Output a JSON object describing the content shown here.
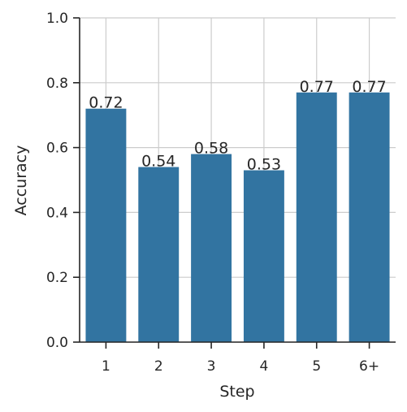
{
  "chart_data": {
    "type": "bar",
    "x_label": "Step",
    "y_label": "Accuracy",
    "categories": [
      "1",
      "2",
      "3",
      "4",
      "5",
      "6+"
    ],
    "values": [
      0.72,
      0.54,
      0.58,
      0.53,
      0.77,
      0.77
    ],
    "value_labels": [
      "0.72",
      "0.54",
      "0.58",
      "0.53",
      "0.77",
      "0.77"
    ],
    "color": "#3274a1",
    "ylim": [
      0,
      1
    ],
    "yticks": [
      {
        "value": 0,
        "label": "0.0"
      },
      {
        "value": 0.2,
        "label": "0.2"
      },
      {
        "value": 0.4,
        "label": "0.4"
      },
      {
        "value": 0.6,
        "label": "0.6"
      },
      {
        "value": 0.8,
        "label": "0.8"
      },
      {
        "value": 1,
        "label": "1.0"
      }
    ],
    "grid": true
  }
}
